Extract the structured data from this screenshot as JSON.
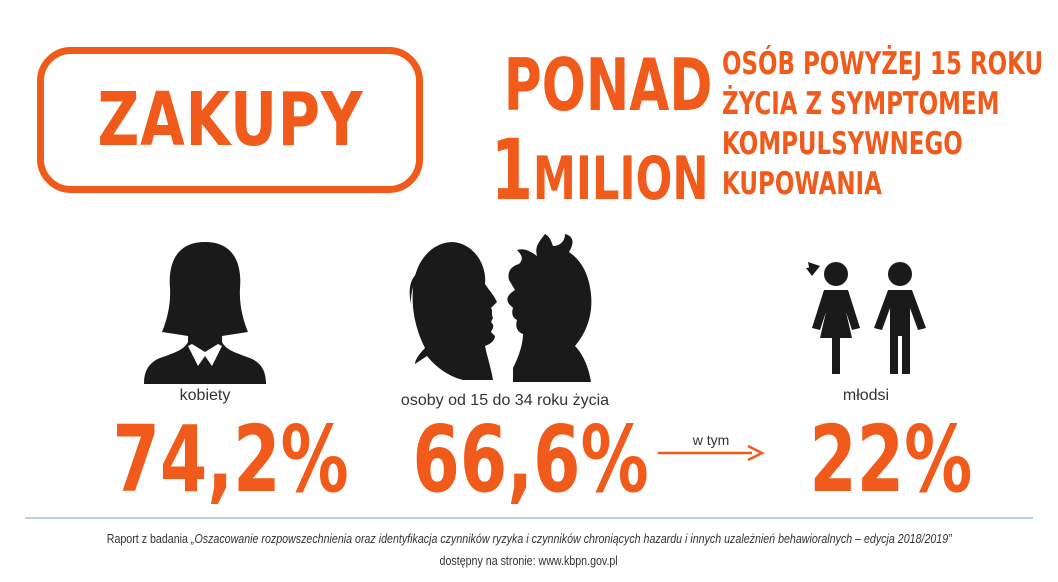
{
  "header": {
    "title": "ZAKUPY",
    "ponad": "PONAD",
    "milion_number": "1",
    "milion_word": "MILION",
    "description_lines": [
      "OSÓB POWYŻEJ 15 ROKU",
      "ŻYCIA Z SYMPTOMEM",
      "KOMPULSYWNEGO",
      "KUPOWANIA"
    ]
  },
  "stats": [
    {
      "label": "kobiety",
      "value": "74,2%",
      "icon": "woman-silhouette-icon"
    },
    {
      "label": "osoby od 15 do 34 roku życia",
      "value": "66,6%",
      "icon": "couple-profile-icon"
    },
    {
      "label": "młodsi",
      "value": "22%",
      "icon": "children-icon"
    }
  ],
  "arrow_label": "w tym",
  "footer": {
    "prefix": "Raport z badania ",
    "report_title": "„Oszacowanie rozpowszechnienia oraz identyfikacja czynników ryzyka i czynników chroniących hazardu i innych uzależnień behawioralnych – edycja 2018/2019”",
    "source_line": "dostępny na stronie: www.kbpn.gov.pl"
  },
  "colors": {
    "accent": "#f05a1a",
    "icon": "#1a1a1a",
    "divider": "#bcd3e6"
  }
}
